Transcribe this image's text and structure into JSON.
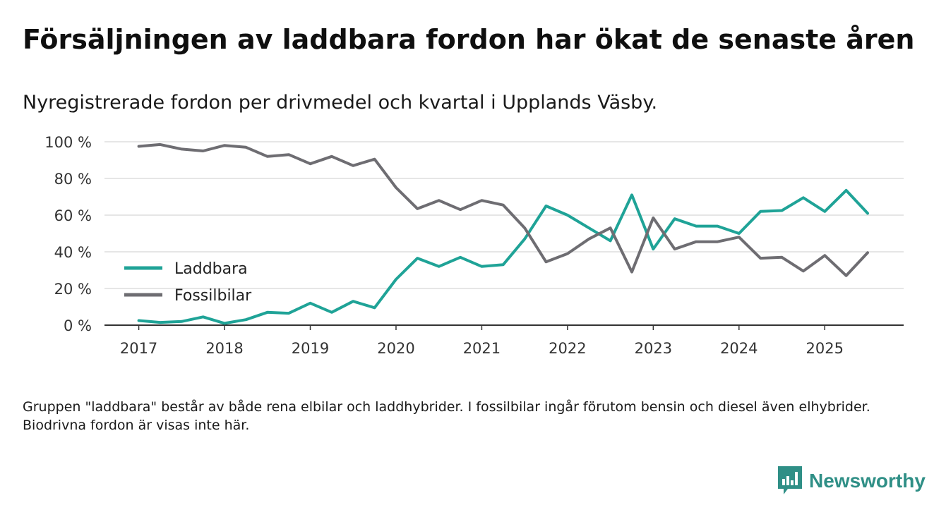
{
  "title": "Försäljningen av laddbara fordon har ökat de senaste åren",
  "subtitle": "Nyregistrerade fordon per drivmedel och kvartal i Upplands Väsby.",
  "footnote": "Gruppen \"laddbara\" består av både rena elbilar och laddhybrider. I fossilbilar ingår förutom bensin och diesel även elhybrider. Biodrivna fordon är visas inte här.",
  "brand": {
    "name": "Newsworthy",
    "logo_icon": "newsworthy-bar-chart-icon",
    "color": "#2f8f86"
  },
  "chart_data": {
    "type": "line",
    "title": "",
    "xlabel": "",
    "ylabel": "",
    "x_ticks": [
      "2017",
      "2018",
      "2019",
      "2020",
      "2021",
      "2022",
      "2023",
      "2024",
      "2025"
    ],
    "x_start_year": 2017,
    "x_step": 0.25,
    "xlim": [
      2016.6,
      2025.92
    ],
    "ylim": [
      0,
      100
    ],
    "y_ticks": [
      0,
      20,
      40,
      60,
      80,
      100
    ],
    "y_tick_labels": [
      "0 %",
      "20 %",
      "40 %",
      "60 %",
      "80 %",
      "100 %"
    ],
    "grid": true,
    "legend_position": "lower-left",
    "series": [
      {
        "name": "Laddbara",
        "color": "#1fa397",
        "values": [
          2.5,
          1.5,
          2,
          4.5,
          1,
          3,
          7,
          6.5,
          12,
          7,
          13,
          9.5,
          25,
          36.5,
          32,
          37,
          32,
          33,
          47,
          65,
          60,
          53,
          46,
          71,
          41.5,
          58,
          54,
          54,
          50,
          62,
          62.5,
          69.5,
          62,
          73.5,
          61
        ]
      },
      {
        "name": "Fossilbilar",
        "color": "#6e6d72",
        "values": [
          97.5,
          98.5,
          96,
          95,
          98,
          97,
          92,
          93,
          88,
          92,
          87,
          90.5,
          75,
          63.5,
          68,
          63,
          68,
          65.5,
          53,
          34.5,
          39,
          47,
          53,
          29,
          58.5,
          41.5,
          45.5,
          45.5,
          48,
          36.5,
          37,
          29.5,
          38,
          27,
          39.5
        ]
      }
    ]
  }
}
